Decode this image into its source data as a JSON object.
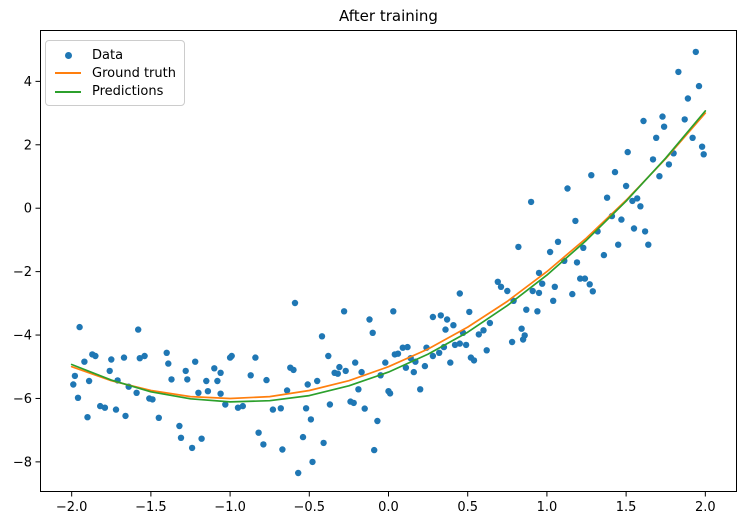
{
  "colors": {
    "data_points": "#1f77b4",
    "ground_truth": "#ff7f0e",
    "predictions": "#2ca02c",
    "axes_frame": "#000000",
    "legend_border": "#cccccc",
    "background": "#ffffff"
  },
  "chart_data": {
    "type": "scatter",
    "title": "After training",
    "xlabel": "",
    "ylabel": "",
    "grid": false,
    "xlim": [
      -2.2,
      2.2
    ],
    "ylim": [
      -8.95,
      5.62
    ],
    "xticks": [
      -2.0,
      -1.5,
      -1.0,
      -0.5,
      0.0,
      0.5,
      1.0,
      1.5,
      2.0
    ],
    "xtick_labels": [
      "−2.0",
      "−1.5",
      "−1.0",
      "−0.5",
      "0.0",
      "0.5",
      "1.0",
      "1.5",
      "2.0"
    ],
    "yticks": [
      4,
      2,
      0,
      -2,
      -4,
      -6,
      -8
    ],
    "ytick_labels": [
      "4",
      "2",
      "0",
      "−2",
      "−4",
      "−6",
      "−8"
    ],
    "legend": {
      "position": "upper left",
      "items": [
        {
          "label": "Data",
          "marker": "dot",
          "color": "#1f77b4"
        },
        {
          "label": "Ground truth",
          "marker": "line",
          "color": "#ff7f0e"
        },
        {
          "label": "Predictions",
          "marker": "line",
          "color": "#2ca02c"
        }
      ]
    },
    "series": [
      {
        "name": "Data",
        "type": "scatter",
        "color": "#1f77b4",
        "marker_radius": 3.2,
        "points": [
          [
            -1.99,
            -5.56
          ],
          [
            -1.98,
            -5.29
          ],
          [
            -1.96,
            -5.98
          ],
          [
            -1.95,
            -3.75
          ],
          [
            -1.92,
            -4.84
          ],
          [
            -1.9,
            -6.59
          ],
          [
            -1.89,
            -5.45
          ],
          [
            -1.87,
            -4.61
          ],
          [
            -1.85,
            -4.66
          ],
          [
            -1.82,
            -6.24
          ],
          [
            -1.79,
            -6.29
          ],
          [
            -1.76,
            -5.13
          ],
          [
            -1.75,
            -4.77
          ],
          [
            -1.72,
            -6.35
          ],
          [
            -1.71,
            -5.43
          ],
          [
            -1.67,
            -4.71
          ],
          [
            -1.66,
            -6.55
          ],
          [
            -1.64,
            -5.63
          ],
          [
            -1.59,
            -5.82
          ],
          [
            -1.58,
            -3.83
          ],
          [
            -1.57,
            -4.73
          ],
          [
            -1.54,
            -4.66
          ],
          [
            -1.51,
            -6.0
          ],
          [
            -1.49,
            -6.03
          ],
          [
            -1.45,
            -6.61
          ],
          [
            -1.4,
            -4.56
          ],
          [
            -1.39,
            -4.9
          ],
          [
            -1.37,
            -5.4
          ],
          [
            -1.32,
            -6.87
          ],
          [
            -1.31,
            -7.24
          ],
          [
            -1.28,
            -5.13
          ],
          [
            -1.27,
            -5.4
          ],
          [
            -1.24,
            -7.56
          ],
          [
            -1.22,
            -4.84
          ],
          [
            -1.2,
            -5.82
          ],
          [
            -1.18,
            -7.27
          ],
          [
            -1.15,
            -5.45
          ],
          [
            -1.14,
            -5.77
          ],
          [
            -1.1,
            -5.05
          ],
          [
            -1.08,
            -5.45
          ],
          [
            -1.06,
            -5.19
          ],
          [
            -1.06,
            -5.85
          ],
          [
            -1.03,
            -6.19
          ],
          [
            -1.0,
            -4.71
          ],
          [
            -0.99,
            -4.66
          ],
          [
            -0.95,
            -6.29
          ],
          [
            -0.92,
            -6.24
          ],
          [
            -0.87,
            -5.27
          ],
          [
            -0.84,
            -4.71
          ],
          [
            -0.82,
            -7.08
          ],
          [
            -0.79,
            -7.45
          ],
          [
            -0.77,
            -5.42
          ],
          [
            -0.73,
            -6.35
          ],
          [
            -0.68,
            -6.31
          ],
          [
            -0.67,
            -7.61
          ],
          [
            -0.64,
            -5.75
          ],
          [
            -0.62,
            -5.03
          ],
          [
            -0.6,
            -5.1
          ],
          [
            -0.59,
            -2.99
          ],
          [
            -0.57,
            -8.35
          ],
          [
            -0.54,
            -7.22
          ],
          [
            -0.52,
            -6.31
          ],
          [
            -0.51,
            -5.56
          ],
          [
            -0.49,
            -6.66
          ],
          [
            -0.48,
            -8.0
          ],
          [
            -0.45,
            -5.45
          ],
          [
            -0.42,
            -4.04
          ],
          [
            -0.41,
            -7.4
          ],
          [
            -0.38,
            -4.66
          ],
          [
            -0.37,
            -6.19
          ],
          [
            -0.34,
            -5.19
          ],
          [
            -0.32,
            -5.22
          ],
          [
            -0.31,
            -5.01
          ],
          [
            -0.28,
            -3.25
          ],
          [
            -0.27,
            -5.13
          ],
          [
            -0.24,
            -6.1
          ],
          [
            -0.22,
            -6.14
          ],
          [
            -0.21,
            -4.87
          ],
          [
            -0.19,
            -5.71
          ],
          [
            -0.17,
            -5.17
          ],
          [
            -0.15,
            -6.32
          ],
          [
            -0.12,
            -3.51
          ],
          [
            -0.1,
            -3.93
          ],
          [
            -0.09,
            -7.63
          ],
          [
            -0.07,
            -6.71
          ],
          [
            -0.05,
            -5.27
          ],
          [
            -0.02,
            -4.87
          ],
          [
            0.0,
            -5.77
          ],
          [
            0.01,
            -5.84
          ],
          [
            0.03,
            -3.25
          ],
          [
            0.04,
            -4.61
          ],
          [
            0.06,
            -4.59
          ],
          [
            0.09,
            -4.4
          ],
          [
            0.11,
            -5.03
          ],
          [
            0.12,
            -4.38
          ],
          [
            0.14,
            -4.73
          ],
          [
            0.16,
            -5.17
          ],
          [
            0.17,
            -4.84
          ],
          [
            0.2,
            -5.71
          ],
          [
            0.23,
            -4.98
          ],
          [
            0.24,
            -4.4
          ],
          [
            0.28,
            -4.66
          ],
          [
            0.28,
            -3.43
          ],
          [
            0.32,
            -4.56
          ],
          [
            0.33,
            -3.38
          ],
          [
            0.35,
            -4.38
          ],
          [
            0.36,
            -3.83
          ],
          [
            0.37,
            -3.51
          ],
          [
            0.39,
            -4.87
          ],
          [
            0.41,
            -3.69
          ],
          [
            0.42,
            -4.31
          ],
          [
            0.45,
            -4.27
          ],
          [
            0.45,
            -2.69
          ],
          [
            0.47,
            -3.93
          ],
          [
            0.49,
            -4.31
          ],
          [
            0.51,
            -3.27
          ],
          [
            0.52,
            -4.71
          ],
          [
            0.54,
            -4.8
          ],
          [
            0.57,
            -3.98
          ],
          [
            0.6,
            -3.85
          ],
          [
            0.62,
            -4.48
          ],
          [
            0.64,
            -3.62
          ],
          [
            0.69,
            -2.32
          ],
          [
            0.71,
            -2.48
          ],
          [
            0.75,
            -2.61
          ],
          [
            0.78,
            -4.22
          ],
          [
            0.79,
            -2.92
          ],
          [
            0.82,
            -1.22
          ],
          [
            0.84,
            -3.8
          ],
          [
            0.85,
            -4.14
          ],
          [
            0.86,
            -4.01
          ],
          [
            0.87,
            -3.2
          ],
          [
            0.9,
            0.2
          ],
          [
            0.91,
            -2.61
          ],
          [
            0.94,
            -3.25
          ],
          [
            0.95,
            -2.04
          ],
          [
            0.95,
            -2.67
          ],
          [
            0.97,
            -2.38
          ],
          [
            1.02,
            -1.38
          ],
          [
            1.04,
            -2.92
          ],
          [
            1.05,
            -2.48
          ],
          [
            1.07,
            -1.06
          ],
          [
            1.11,
            -1.66
          ],
          [
            1.13,
            0.62
          ],
          [
            1.16,
            -2.71
          ],
          [
            1.18,
            -0.4
          ],
          [
            1.19,
            -1.71
          ],
          [
            1.21,
            -2.22
          ],
          [
            1.23,
            -1.25
          ],
          [
            1.24,
            -2.22
          ],
          [
            1.27,
            -2.4
          ],
          [
            1.28,
            1.04
          ],
          [
            1.29,
            -2.62
          ],
          [
            1.32,
            -0.73
          ],
          [
            1.36,
            -1.48
          ],
          [
            1.38,
            0.33
          ],
          [
            1.41,
            -0.25
          ],
          [
            1.43,
            1.14
          ],
          [
            1.45,
            -1.15
          ],
          [
            1.47,
            -0.36
          ],
          [
            1.5,
            0.7
          ],
          [
            1.51,
            1.77
          ],
          [
            1.54,
            0.23
          ],
          [
            1.55,
            -0.64
          ],
          [
            1.57,
            0.31
          ],
          [
            1.59,
            0.06
          ],
          [
            1.61,
            2.75
          ],
          [
            1.62,
            -0.73
          ],
          [
            1.64,
            -1.15
          ],
          [
            1.67,
            1.54
          ],
          [
            1.69,
            2.22
          ],
          [
            1.71,
            1.01
          ],
          [
            1.73,
            2.89
          ],
          [
            1.74,
            2.57
          ],
          [
            1.77,
            1.38
          ],
          [
            1.8,
            1.73
          ],
          [
            1.83,
            4.3
          ],
          [
            1.87,
            2.8
          ],
          [
            1.89,
            3.46
          ],
          [
            1.92,
            2.22
          ],
          [
            1.94,
            4.93
          ],
          [
            1.96,
            3.85
          ],
          [
            1.98,
            1.94
          ],
          [
            1.99,
            1.7
          ]
        ]
      },
      {
        "name": "Ground truth",
        "type": "line",
        "color": "#ff7f0e",
        "x": [
          -2,
          -1.75,
          -1.5,
          -1.25,
          -1,
          -0.75,
          -0.5,
          -0.25,
          0,
          0.25,
          0.5,
          0.75,
          1,
          1.25,
          1.5,
          1.75,
          2
        ],
        "y": [
          -5,
          -5.44,
          -5.75,
          -5.94,
          -6,
          -5.94,
          -5.75,
          -5.44,
          -5,
          -4.44,
          -3.75,
          -2.94,
          -2,
          -0.94,
          0.25,
          1.56,
          3
        ]
      },
      {
        "name": "Predictions",
        "type": "line",
        "color": "#2ca02c",
        "x": [
          -2,
          -1.75,
          -1.5,
          -1.25,
          -1,
          -0.75,
          -0.5,
          -0.25,
          0,
          0.25,
          0.5,
          0.75,
          1,
          1.25,
          1.5,
          1.75,
          2
        ],
        "y": [
          -4.93,
          -5.42,
          -5.79,
          -6.01,
          -6.11,
          -6.07,
          -5.91,
          -5.6,
          -5.17,
          -4.6,
          -3.91,
          -3.07,
          -2.11,
          -1.01,
          0.22,
          1.58,
          3.07
        ]
      }
    ]
  }
}
